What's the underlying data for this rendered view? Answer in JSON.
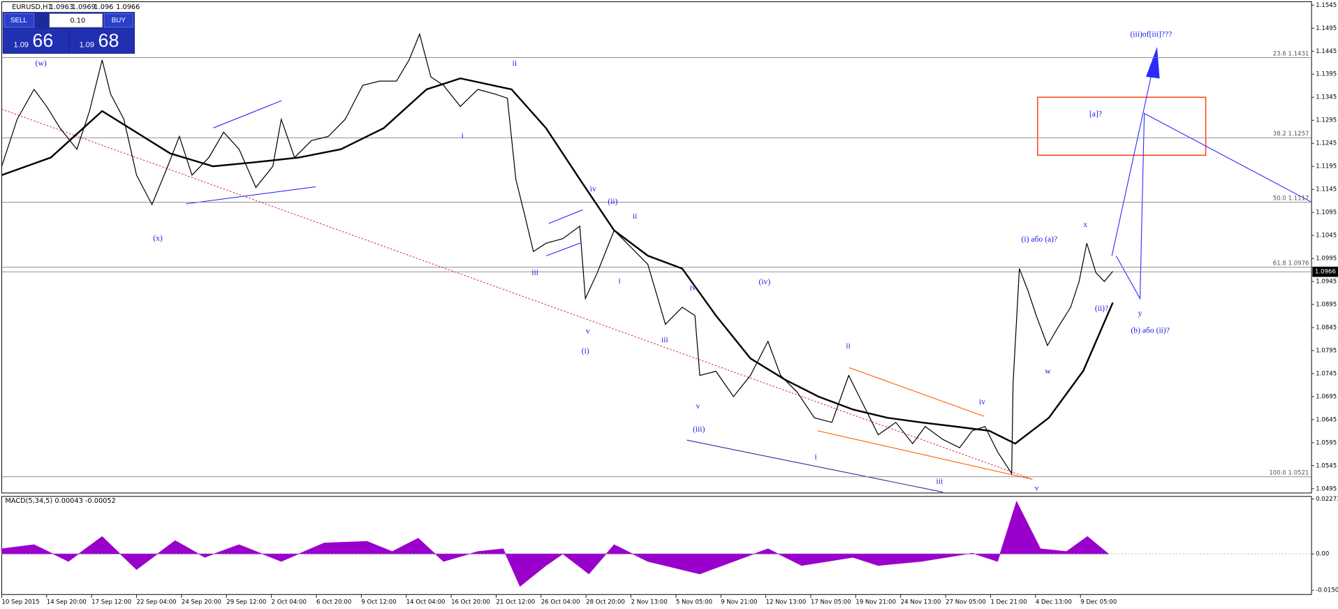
{
  "header": {
    "symbol": "EURUSD,H1",
    "ohlc": [
      1.0963,
      1.0969,
      1.096,
      1.0966
    ]
  },
  "trade_panel": {
    "sell": "SELL",
    "buy": "BUY",
    "lot": "0.10",
    "bid_big": "1.09",
    "bid_small": "66",
    "ask_big": "1.09",
    "ask_small": "68"
  },
  "chart_data": [
    {
      "type": "line",
      "xlim": [
        0,
        1865
      ],
      "xticks": [
        {
          "value": 0,
          "label": "10 Sep 2015"
        },
        {
          "value": 64,
          "label": "14 Sep 20:00"
        },
        {
          "value": 128,
          "label": "17 Sep 12:00"
        },
        {
          "value": 192,
          "label": "22 Sep 04:00"
        },
        {
          "value": 256,
          "label": "24 Sep 20:00"
        },
        {
          "value": 320,
          "label": "29 Sep 12:00"
        },
        {
          "value": 384,
          "label": "2 Oct 04:00"
        },
        {
          "value": 448,
          "label": "6 Oct 20:00"
        },
        {
          "value": 512,
          "label": "9 Oct 12:00"
        },
        {
          "value": 576,
          "label": "14 Oct 04:00"
        },
        {
          "value": 640,
          "label": "16 Oct 20:00"
        },
        {
          "value": 704,
          "label": "21 Oct 12:00"
        },
        {
          "value": 768,
          "label": "26 Oct 04:00"
        },
        {
          "value": 832,
          "label": "28 Oct 20:00"
        },
        {
          "value": 896,
          "label": "2 Nov 13:00"
        },
        {
          "value": 960,
          "label": "5 Nov 05:00"
        },
        {
          "value": 1024,
          "label": "9 Nov 21:00"
        },
        {
          "value": 1088,
          "label": "12 Nov 13:00"
        },
        {
          "value": 1152,
          "label": "17 Nov 05:00"
        },
        {
          "value": 1216,
          "label": "19 Nov 21:00"
        },
        {
          "value": 1280,
          "label": "24 Nov 13:00"
        },
        {
          "value": 1344,
          "label": "27 Nov 05:00"
        },
        {
          "value": 1408,
          "label": "1 Dec 21:00"
        },
        {
          "value": 1472,
          "label": "4 Dec 13:00"
        },
        {
          "value": 1536,
          "label": "9 Dec 05:00"
        }
      ],
      "ylim": [
        1.0495,
        1.1545
      ],
      "yticks": [
        1.1545,
        1.1495,
        1.1445,
        1.1395,
        1.1345,
        1.1295,
        1.1245,
        1.1195,
        1.1145,
        1.1095,
        1.1045,
        1.0995,
        1.0945,
        1.0895,
        1.0845,
        1.0795,
        1.0745,
        1.0695,
        1.0645,
        1.0595,
        1.0545,
        1.0495
      ],
      "series": [
        {
          "color": "#000000",
          "x": [
            0,
            22,
            46,
            64,
            83,
            107,
            125,
            143,
            155,
            174,
            192,
            214,
            234,
            253,
            271,
            295,
            316,
            338,
            362,
            386,
            398,
            417,
            441,
            465,
            489,
            514,
            538,
            562,
            580,
            595,
            611,
            629,
            653,
            678,
            702,
            720,
            732,
            744,
            757,
            775,
            799,
            823,
            831,
            848,
            872,
            896,
            920,
            945,
            969,
            987,
            994,
            1017,
            1042,
            1066,
            1091,
            1109,
            1133,
            1157,
            1182,
            1206,
            1224,
            1248,
            1273,
            1297,
            1315,
            1340,
            1364,
            1382,
            1400,
            1418,
            1438,
            1440,
            1449,
            1461,
            1473,
            1489,
            1503,
            1522,
            1534,
            1545,
            1558,
            1570,
            1582
          ],
          "values": [
            1.1195,
            1.1297,
            1.1362,
            1.1325,
            1.1278,
            1.1232,
            1.1315,
            1.1426,
            1.1352,
            1.1297,
            1.1176,
            1.1112,
            1.1186,
            1.126,
            1.1176,
            1.1214,
            1.1269,
            1.1232,
            1.1149,
            1.1195,
            1.1297,
            1.1214,
            1.1251,
            1.126,
            1.1297,
            1.1371,
            1.138,
            1.138,
            1.1426,
            1.1482,
            1.1389,
            1.1371,
            1.1325,
            1.1362,
            1.1352,
            1.1343,
            1.1167,
            1.1093,
            1.101,
            1.1028,
            1.1038,
            1.1065,
            1.0908,
            1.0964,
            1.1056,
            1.1019,
            1.0982,
            1.0852,
            1.0889,
            1.0871,
            1.0741,
            1.075,
            1.0695,
            1.0741,
            1.0815,
            1.0741,
            1.0704,
            1.0649,
            1.0639,
            1.0741,
            1.0686,
            1.0612,
            1.0639,
            1.0593,
            1.063,
            1.0602,
            1.0584,
            1.0621,
            1.063,
            1.0575,
            1.0528,
            1.0723,
            1.0973,
            1.0926,
            1.0871,
            1.0806,
            1.0843,
            1.0889,
            1.0945,
            1.1028,
            1.0964,
            1.0945,
            1.0967
          ]
        },
        {
          "color": "#000000",
          "x": [
            0,
            70,
            143,
            240,
            301,
            362,
            423,
            483,
            544,
            605,
            653,
            726,
            775,
            823,
            872,
            920,
            969,
            1017,
            1066,
            1115,
            1163,
            1212,
            1261,
            1309,
            1358,
            1406,
            1443,
            1491,
            1540,
            1582
          ],
          "values": [
            1.1176,
            1.1214,
            1.1315,
            1.1223,
            1.1195,
            1.1204,
            1.1214,
            1.1232,
            1.1278,
            1.1362,
            1.1386,
            1.1362,
            1.1278,
            1.1167,
            1.1056,
            1.1001,
            1.0973,
            1.0871,
            1.0778,
            1.0732,
            1.0695,
            1.0667,
            1.0649,
            1.0639,
            1.063,
            1.0621,
            1.0593,
            1.0649,
            1.0751,
            1.0899
          ]
        }
      ],
      "last_price": 1.0966,
      "fib_levels": [
        {
          "ratio": "23.6",
          "value": 1.1431
        },
        {
          "ratio": "38.2",
          "value": 1.1257
        },
        {
          "ratio": "50.0",
          "value": 1.1117
        },
        {
          "ratio": "61.8",
          "value": 1.0976
        },
        {
          "ratio": "100.0",
          "value": 1.0521
        }
      ],
      "annotations": [
        "(w)",
        "(x)",
        "ii",
        "i",
        "iv",
        "(ii)",
        "ii",
        "iii",
        "i",
        "v",
        "(i)",
        "iv",
        "iii",
        "v",
        "(iii)",
        "(iv)",
        "ii",
        "i",
        "iii",
        "iv",
        "v",
        "(i) або (a)?",
        "x",
        "(ii)?",
        "w",
        "y",
        "(b) або (ii)?",
        "[a]?",
        "(iii)of[iii]???"
      ]
    },
    {
      "type": "area",
      "title": "MACD(5,34,5) 0.00043 -0.00052",
      "color": "#9900cc",
      "xlim": [
        0,
        1865
      ],
      "ylim": [
        -0.01504,
        0.02273
      ],
      "yticks": [
        0.02273,
        {
          "value": 0,
          "label": "0.00"
        },
        -0.01504
      ],
      "x": [
        0,
        46,
        95,
        143,
        192,
        247,
        289,
        338,
        398,
        459,
        520,
        556,
        593,
        629,
        678,
        714,
        738,
        775,
        799,
        836,
        872,
        920,
        994,
        1042,
        1091,
        1139,
        1212,
        1248,
        1309,
        1382,
        1418,
        1445,
        1479,
        1516,
        1546,
        1576
      ],
      "values": [
        0.0021,
        0.0038,
        -0.0031,
        0.0072,
        -0.0065,
        0.0055,
        -0.0014,
        0.0038,
        -0.0031,
        0.0045,
        0.0052,
        0.001,
        0.0065,
        -0.0031,
        0.001,
        0.0021,
        -0.0134,
        -0.0048,
        0,
        -0.0083,
        0.0038,
        -0.0031,
        -0.0083,
        -0.0031,
        0.0021,
        -0.0048,
        -0.0014,
        -0.0048,
        -0.0031,
        0.0003,
        -0.0031,
        0.0217,
        0.0021,
        0.001,
        0.0072,
        0
      ]
    }
  ]
}
